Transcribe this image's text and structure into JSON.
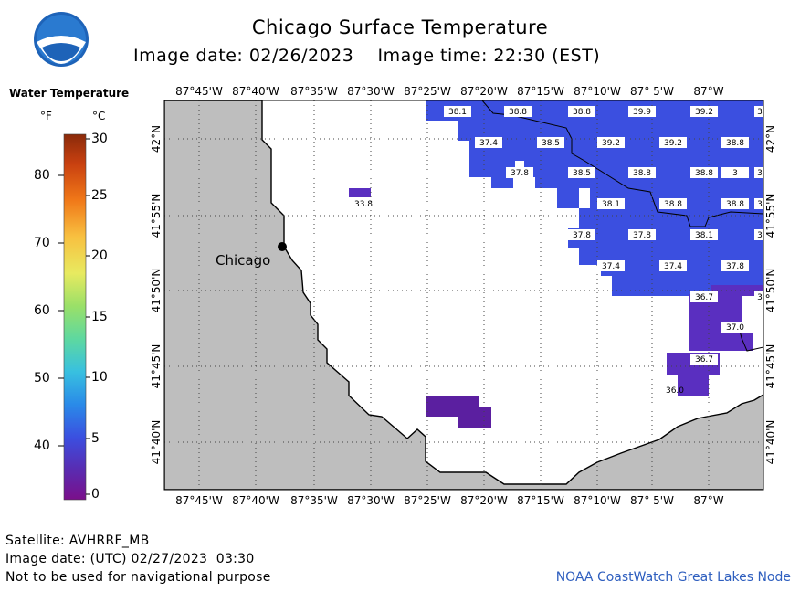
{
  "title": "Chicago Surface Temperature",
  "image_date_label": "Image date: 02/26/2023",
  "image_time_label": "Image time: 22:30 (EST)",
  "legend": {
    "title": "Water Temperature",
    "f_unit": "°F",
    "c_unit": "°C",
    "f_ticks": [
      "80",
      "70",
      "60",
      "50",
      "40"
    ],
    "c_ticks": [
      "30",
      "25",
      "20",
      "15",
      "10",
      "5",
      "0"
    ]
  },
  "map": {
    "city_label": "Chicago",
    "lon_labels_top": [
      "87°45'W",
      "87°40'W",
      "87°35'W",
      "87°30'W",
      "87°25'W",
      "87°20'W",
      "87°15'W",
      "87°10'W",
      "87° 5'W",
      "87°W"
    ],
    "lon_labels_bottom": [
      "87°45'W",
      "87°40'W",
      "87°35'W",
      "87°30'W",
      "87°25'W",
      "87°20'W",
      "87°15'W",
      "87°10'W",
      "87° 5'W",
      "87°W"
    ],
    "lat_labels": [
      "42°N",
      "41°55'N",
      "41°50'N",
      "41°45'N",
      "41°40'N"
    ],
    "temperature_labels": [
      "38.1",
      "38.8",
      "38.8",
      "39.9",
      "39.2",
      "3",
      "37.4",
      "38.5",
      "39.2",
      "39.2",
      "38.8",
      "3",
      "37.8",
      "38.5",
      "38.8",
      "38.8",
      "3",
      "33.8",
      "38.1",
      "38.8",
      "38.8",
      "3",
      "37.8",
      "37.8",
      "38.1",
      "3",
      "37.4",
      "37.4",
      "37.8",
      "36.7",
      "3",
      "37.0",
      "36.7",
      "36.0"
    ]
  },
  "footer": {
    "satellite": "Satellite: AVHRRF_MB",
    "utc_date": "Image date: (UTC) 02/27/2023  03:30",
    "disclaimer": "Not to be used for navigational purpose",
    "credit": "NOAA CoastWatch Great Lakes Node"
  },
  "colors": {
    "land": "#bebebe",
    "water": "#ffffff",
    "sst_blue": "#3b4fe0",
    "sst_purple": "#5a2fc0",
    "sst_dark_purple": "#5b1fa0",
    "credit": "#2f5fbf"
  }
}
